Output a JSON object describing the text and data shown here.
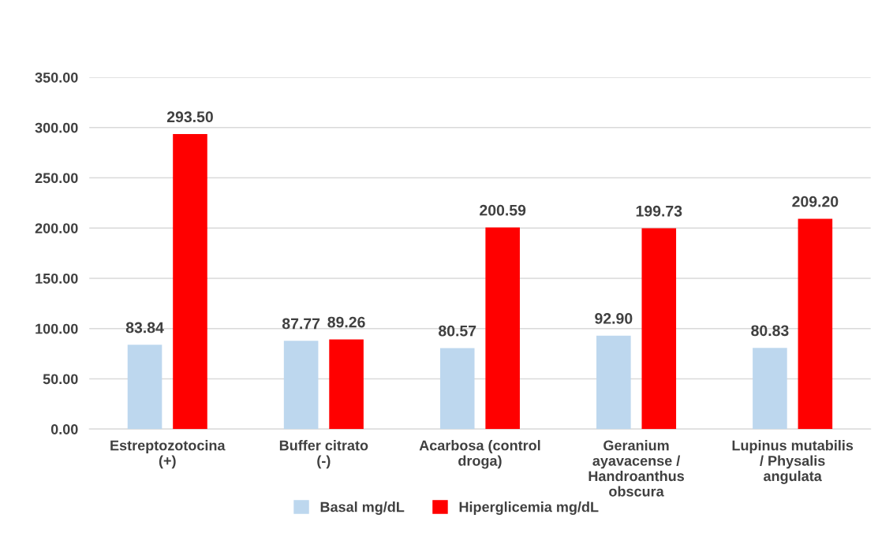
{
  "chart_data": {
    "type": "bar",
    "categories": [
      "Estreptozotocina (+)",
      "Buffer citrato (-)",
      "Acarbosa (control droga)",
      "Geranium ayavacense / Handroanthus obscura",
      "Lupinus mutabilis / Physalis angulata"
    ],
    "series": [
      {
        "name": "Basal mg/dL",
        "color": "#bdd7ee",
        "values": [
          83.84,
          87.77,
          80.57,
          92.9,
          80.83
        ],
        "value_labels": [
          "83.84",
          "87.77",
          "80.57",
          "92.90",
          "80.83"
        ]
      },
      {
        "name": "Hiperglicemia mg/dL",
        "color": "#ff0000",
        "values": [
          293.5,
          89.26,
          200.59,
          199.73,
          209.2
        ],
        "value_labels": [
          "293.50",
          "89.26",
          "200.59",
          "199.73",
          "209.20"
        ]
      }
    ],
    "ylim": [
      0,
      350
    ],
    "yticks": [
      {
        "value": 0,
        "label": "0.00"
      },
      {
        "value": 50,
        "label": "50.00"
      },
      {
        "value": 100,
        "label": "100.00"
      },
      {
        "value": 150,
        "label": "150.00"
      },
      {
        "value": 200,
        "label": "200.00"
      },
      {
        "value": 250,
        "label": "250.00"
      },
      {
        "value": 300,
        "label": "300.00"
      },
      {
        "value": 350,
        "label": "350.00"
      }
    ],
    "grid": "y",
    "legend": "bottom"
  }
}
